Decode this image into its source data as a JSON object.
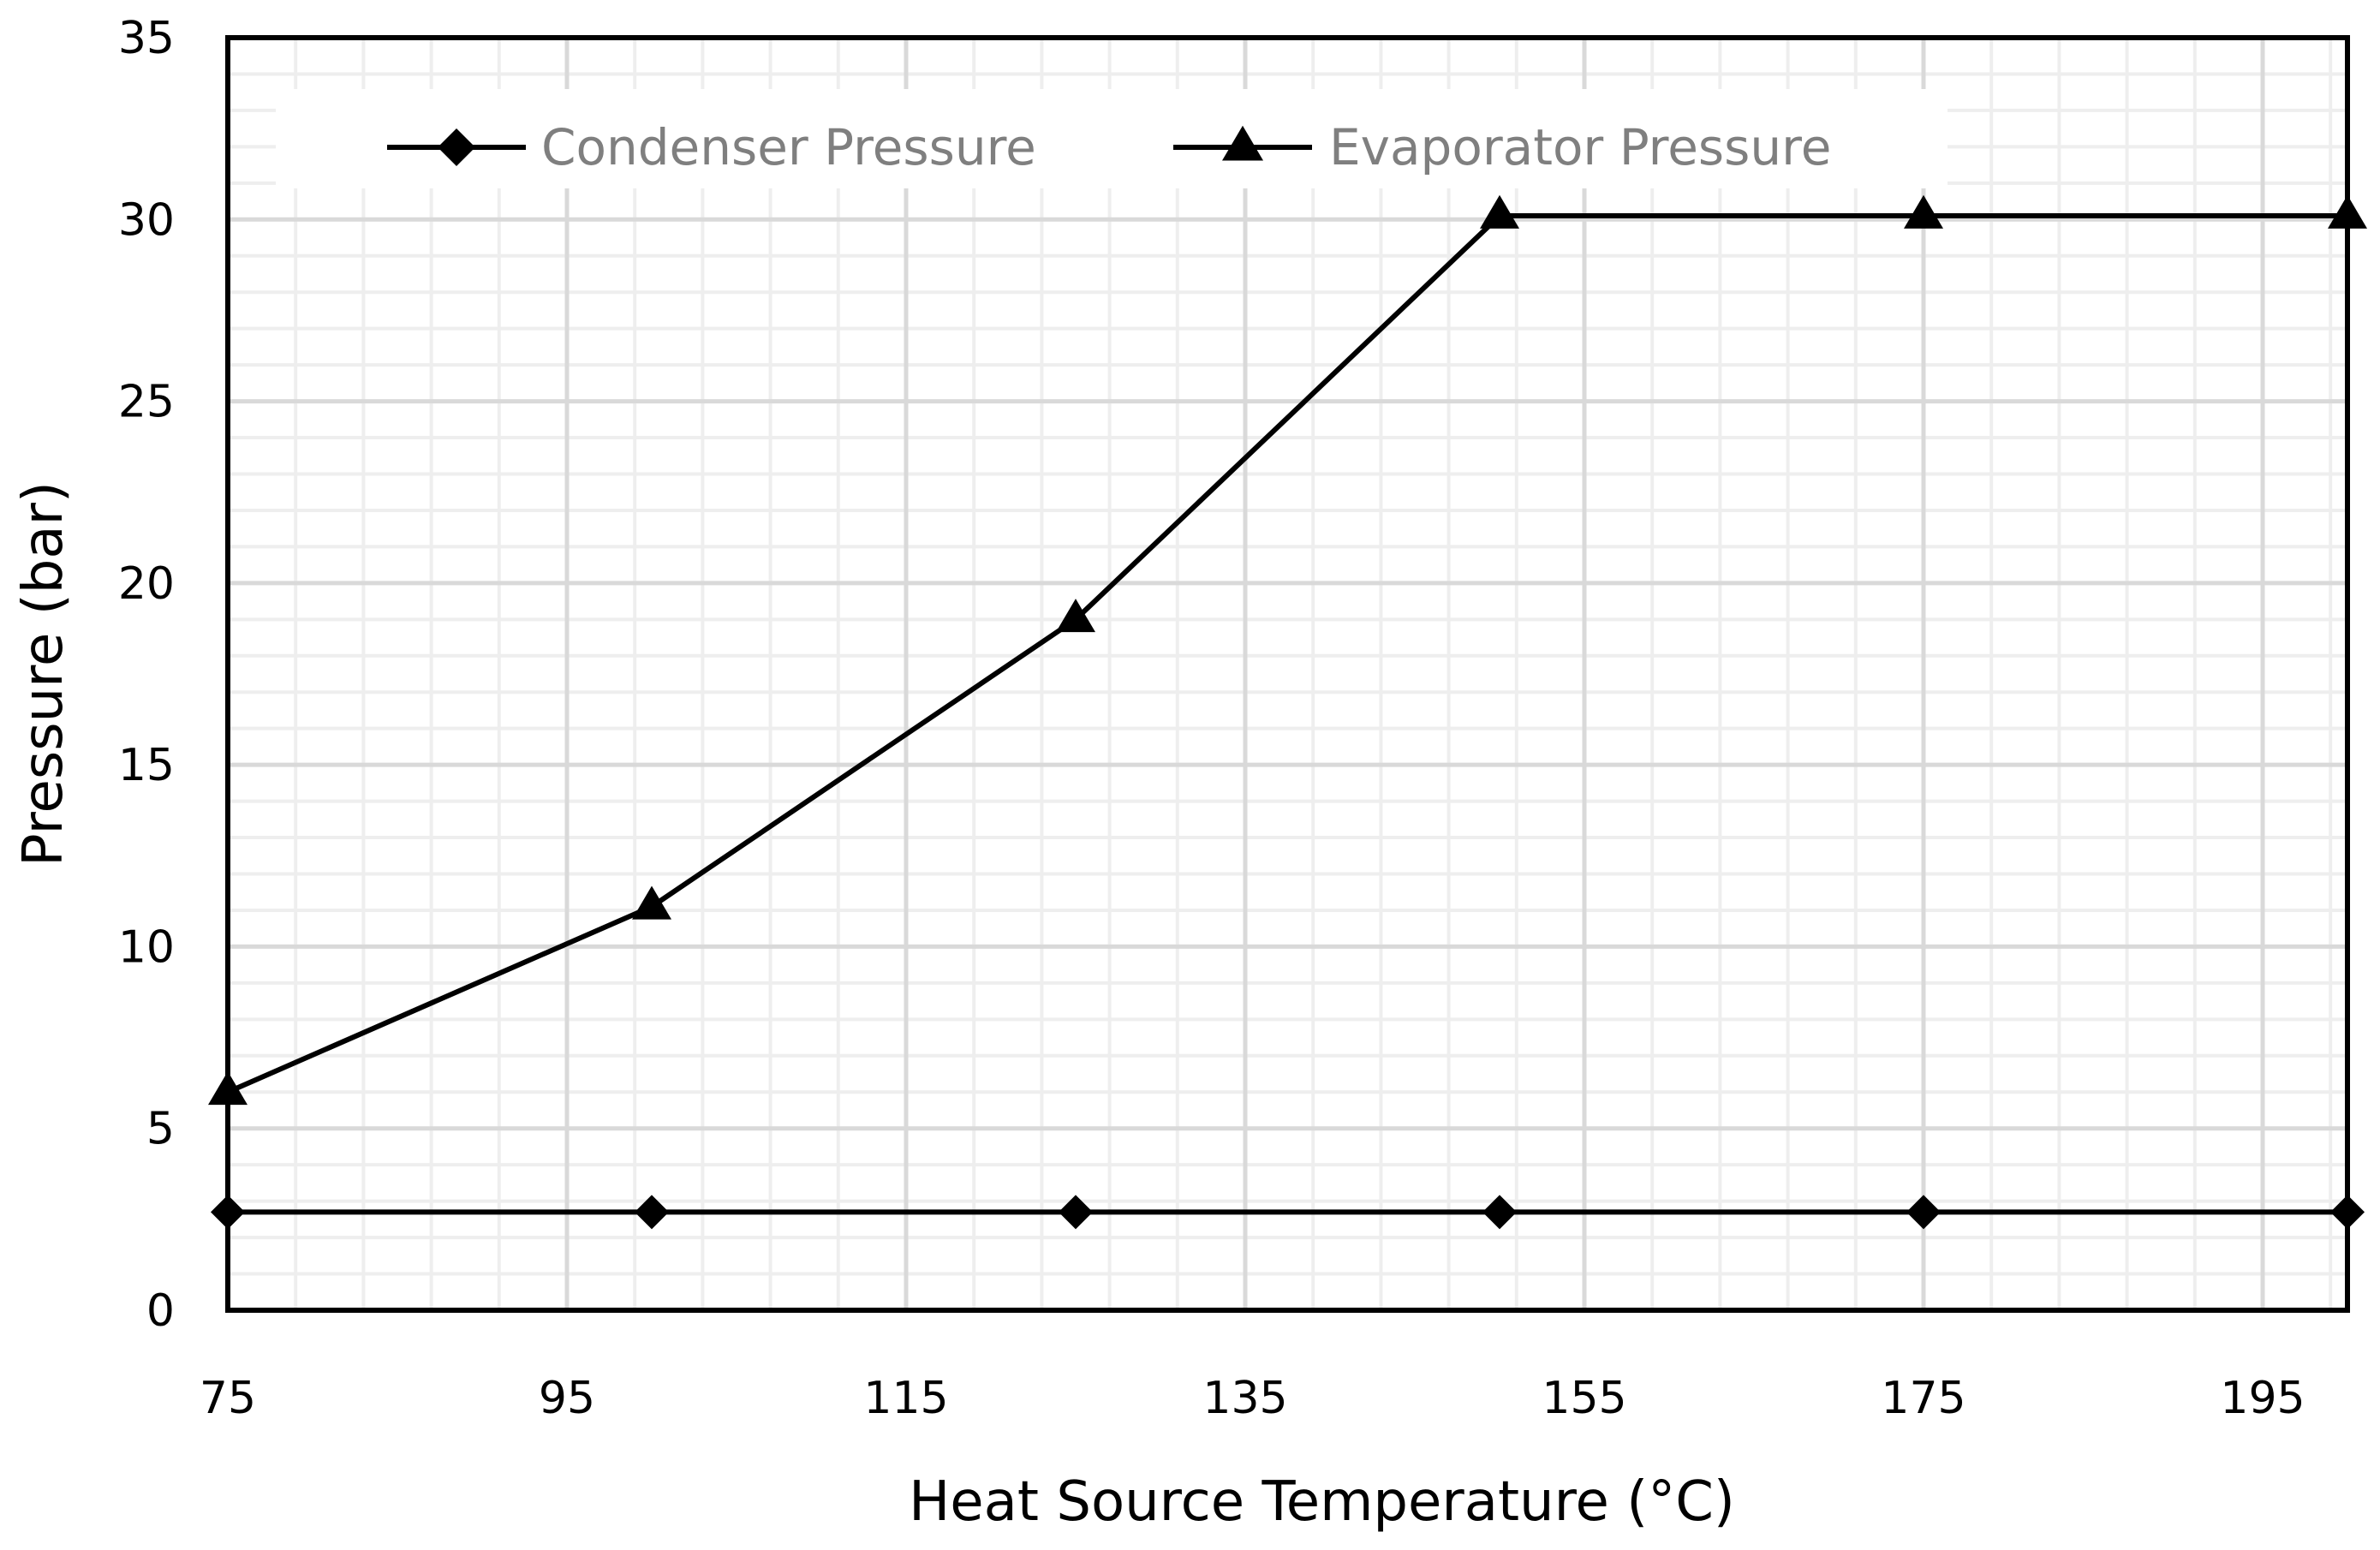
{
  "chart_data": {
    "type": "line",
    "title": "",
    "xlabel": "Heat Source Temperature (°C)",
    "ylabel": "Pressure (bar)",
    "xlim": [
      75,
      200
    ],
    "ylim": [
      0,
      35
    ],
    "x_ticks": [
      75,
      95,
      115,
      135,
      155,
      175,
      195
    ],
    "x_tick_labels": [
      "75",
      "95",
      "115",
      "135",
      "155",
      "175",
      "195"
    ],
    "y_ticks": [
      0,
      5,
      10,
      15,
      20,
      25,
      30,
      35
    ],
    "y_tick_labels": [
      "0",
      "5",
      "10",
      "15",
      "20",
      "25",
      "30",
      "35"
    ],
    "x_minor_step": 4,
    "y_minor_step": 1,
    "grid": true,
    "legend_position": "top",
    "x": [
      75,
      100,
      125,
      150,
      175,
      200
    ],
    "series": [
      {
        "name": "Condenser Pressure",
        "marker": "diamond",
        "values": [
          2.7,
          2.7,
          2.7,
          2.7,
          2.7,
          2.7
        ]
      },
      {
        "name": "Evaporator Pressure",
        "marker": "triangle",
        "values": [
          6.0,
          11.1,
          19.0,
          30.1,
          30.1,
          30.1
        ]
      }
    ],
    "colors": {
      "line": "#000000",
      "marker": "#000000",
      "grid_major": "#d9d9d9",
      "grid_minor": "#eeeeee",
      "legend_text": "#7f7f7f"
    }
  }
}
